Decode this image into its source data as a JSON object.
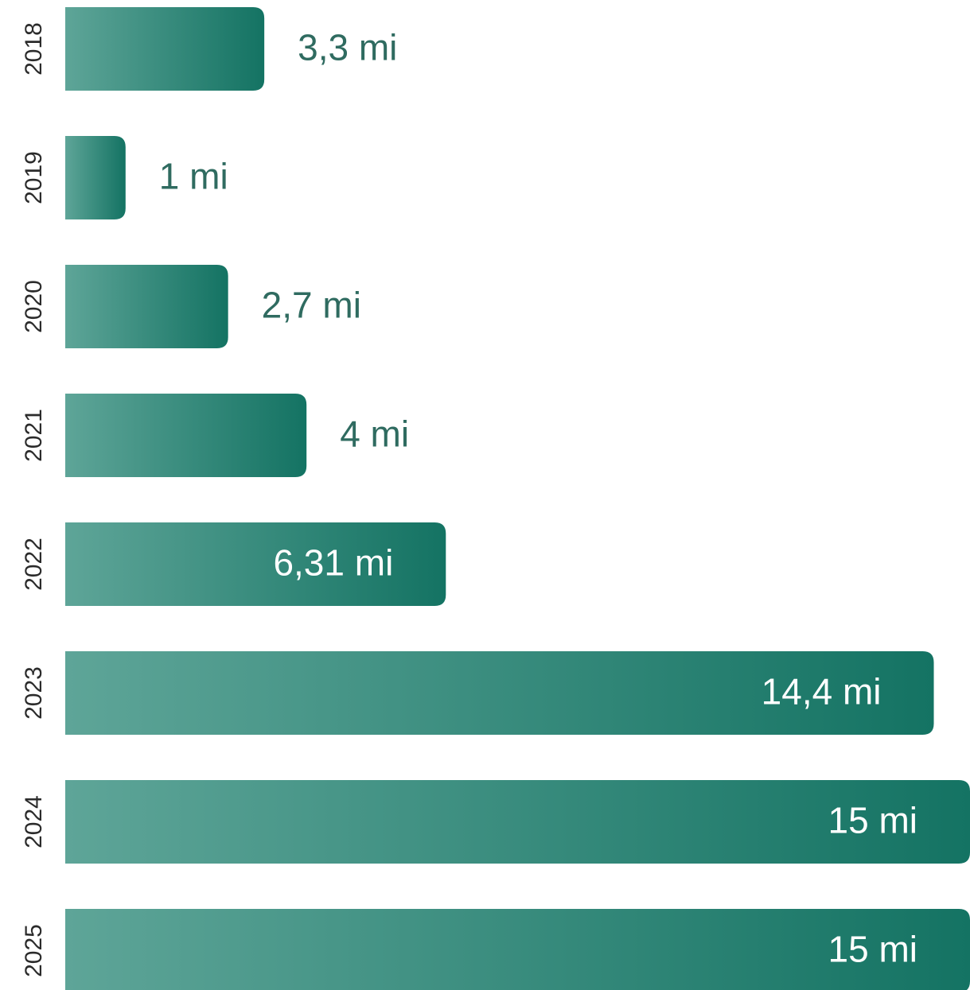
{
  "colors": {
    "bar_start": "#5ea598",
    "bar_end": "#147363",
    "value_outside": "#2f6b60",
    "value_inside": "#ffffff",
    "year_text": "#2b2b2b"
  },
  "chart_data": {
    "type": "bar",
    "orientation": "horizontal",
    "categories": [
      "2018",
      "2019",
      "2020",
      "2021",
      "2022",
      "2023",
      "2024",
      "2025"
    ],
    "values": [
      3.3,
      1,
      2.7,
      4,
      6.31,
      14.4,
      15,
      15
    ],
    "value_labels": [
      "3,3 mi",
      "1 mi",
      "2,7 mi",
      "4 mi",
      "6,31 mi",
      "14,4 mi",
      "15 mi",
      "15 mi"
    ],
    "title": "",
    "xlabel": "",
    "ylabel": "",
    "grid": false,
    "legend": "none"
  }
}
